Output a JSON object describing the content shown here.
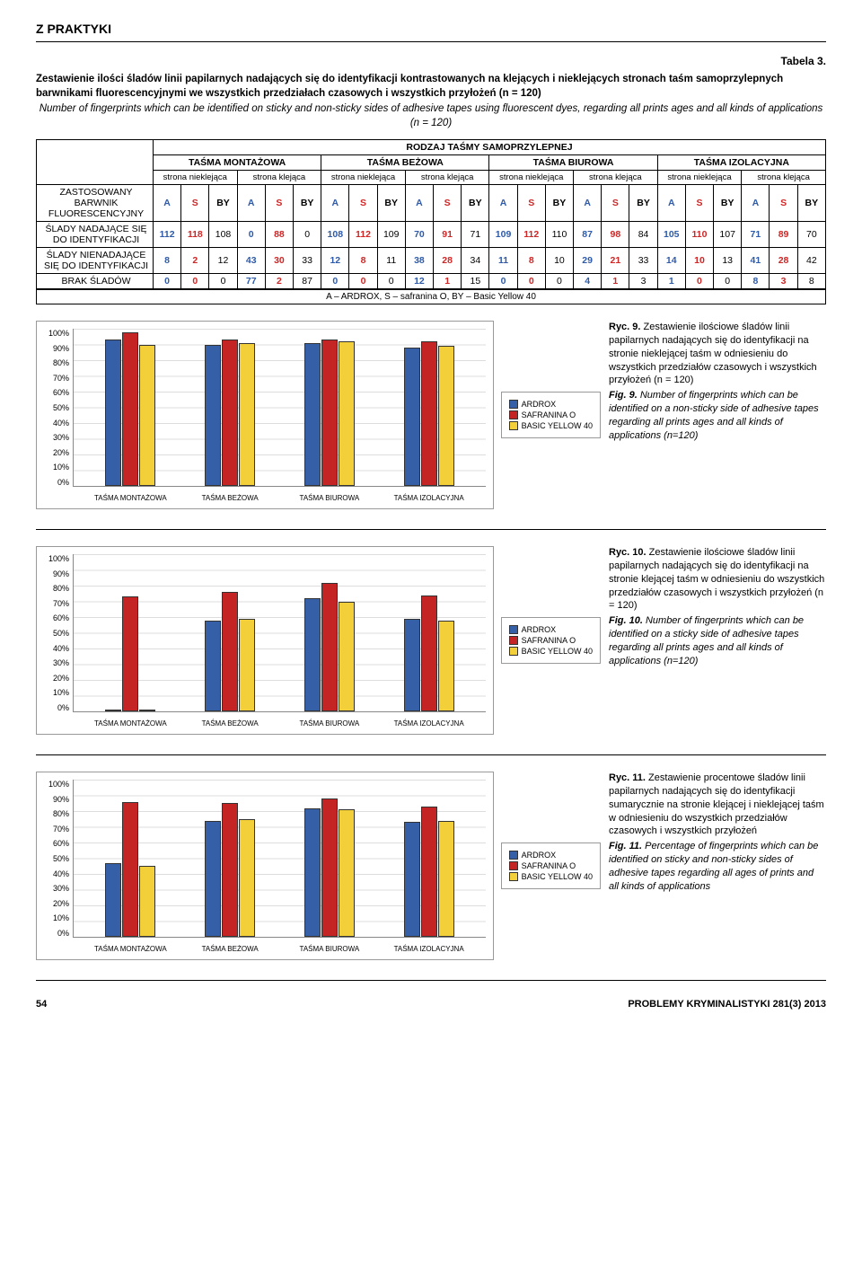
{
  "header": {
    "section": "Z PRAKTYKI"
  },
  "table": {
    "label": "Tabela 3.",
    "caption_pl": "Zestawienie ilości śladów linii papilarnych nadających się do identyfikacji kontrastowanych na klejących i nieklejących stronach taśm samoprzylepnych barwnikami fluorescencyjnymi we wszystkich przedziałach czasowych i wszystkich przyłożeń (n = 120)",
    "caption_en": "Number of fingerprints which can be identified on sticky and non-sticky sides of adhesive tapes using fluorescent dyes, regarding all prints ages and all kinds of applications (n = 120)",
    "super_header": "RODZAJ TAŚMY SAMOPRZYLEPNEJ",
    "tape_types": [
      "TAŚMA MONTAŻOWA",
      "TAŚMA BEŻOWA",
      "TAŚMA BIUROWA",
      "TAŚMA IZOLACYJNA"
    ],
    "side_labels": [
      "strona nieklejąca",
      "strona klejąca",
      "strona nieklejąca",
      "strona klejąca",
      "strona nieklejąca",
      "strona klejąca",
      "strona nieklejąca",
      "strona klejąca"
    ],
    "dye_cols": [
      "A",
      "S",
      "BY",
      "A",
      "S",
      "BY",
      "A",
      "S",
      "BY",
      "A",
      "S",
      "BY",
      "A",
      "S",
      "BY",
      "A",
      "S",
      "BY",
      "A",
      "S",
      "BY",
      "A",
      "S",
      "BY"
    ],
    "row_labels": [
      "ZASTOSOWANY BARWNIK FLUORESCENCYJNY",
      "ŚLADY NADAJĄCE SIĘ DO IDENTYFIKACJI",
      "ŚLADY NIENADAJĄCE SIĘ DO IDENTYFIKACJI",
      "BRAK ŚLADÓW"
    ],
    "rows": [
      [
        112,
        118,
        108,
        0,
        88,
        0,
        108,
        112,
        109,
        70,
        91,
        71,
        109,
        112,
        110,
        87,
        98,
        84,
        105,
        110,
        107,
        71,
        89,
        70
      ],
      [
        8,
        2,
        12,
        43,
        30,
        33,
        12,
        8,
        11,
        38,
        28,
        34,
        11,
        8,
        10,
        29,
        21,
        33,
        14,
        10,
        13,
        41,
        28,
        42
      ],
      [
        0,
        0,
        0,
        77,
        2,
        87,
        0,
        0,
        0,
        12,
        1,
        15,
        0,
        0,
        0,
        4,
        1,
        3,
        1,
        0,
        0,
        8,
        3,
        8
      ]
    ],
    "legend": "A – ARDROX, S – safranina O, BY – Basic Yellow 40"
  },
  "charts_common": {
    "categories": [
      "TAŚMA MONTAŻOWA",
      "TAŚMA BEŻOWA",
      "TAŚMA BIUROWA",
      "TAŚMA IZOLACYJNA"
    ],
    "series_names": [
      "ARDROX",
      "SAFRANINA O",
      "BASIC YELLOW 40"
    ],
    "series_colors": [
      "#355fa6",
      "#c52424",
      "#f3d03a"
    ],
    "ylim": [
      0,
      100
    ],
    "yticks": [
      "0%",
      "10%",
      "20%",
      "30%",
      "40%",
      "50%",
      "60%",
      "70%",
      "80%",
      "90%",
      "100%"
    ],
    "background_color": "#ffffff",
    "grid_color": "#dddddd"
  },
  "chart9": {
    "values": {
      "ARDROX": [
        93,
        90,
        91,
        88
      ],
      "SAFRANINA O": [
        98,
        93,
        93,
        92
      ],
      "BASIC YELLOW 40": [
        90,
        91,
        92,
        89
      ]
    },
    "caption_label": "Ryc. 9.",
    "caption_pl": "Zestawienie ilościowe śladów linii papilarnych nadających się do identyfikacji na stronie nieklejącej taśm w odniesieniu do wszystkich przedziałów czasowych i wszystkich przyłożeń (n = 120)",
    "fig_label": "Fig. 9.",
    "caption_en": "Number of fingerprints which can be identified on a non-sticky side of adhesive tapes regarding all prints ages and all kinds of applications (n=120)"
  },
  "chart10": {
    "values": {
      "ARDROX": [
        0,
        58,
        72,
        59
      ],
      "SAFRANINA O": [
        73,
        76,
        82,
        74
      ],
      "BASIC YELLOW 40": [
        0,
        59,
        70,
        58
      ]
    },
    "caption_label": "Ryc. 10.",
    "caption_pl": "Zestawienie ilościowe śladów linii papilarnych nadających się do identyfikacji na stronie klejącej taśm w odniesieniu do wszystkich przedziałów czasowych i wszystkich przyłożeń (n = 120)",
    "fig_label": "Fig. 10.",
    "caption_en": "Number of fingerprints which can be identified on a sticky side of adhesive tapes regarding all prints ages and all kinds of applications (n=120)"
  },
  "chart11": {
    "values": {
      "ARDROX": [
        47,
        74,
        82,
        73
      ],
      "SAFRANINA O": [
        86,
        85,
        88,
        83
      ],
      "BASIC YELLOW 40": [
        45,
        75,
        81,
        74
      ]
    },
    "caption_label": "Ryc. 11.",
    "caption_pl": "Zestawienie procentowe śladów linii papilarnych nadających się do identyfikacji sumarycznie na stronie klejącej i nieklejącej taśm w odniesieniu do wszystkich przedziałów czasowych i wszystkich przyłożeń",
    "fig_label": "Fig. 11.",
    "caption_en": "Percentage of fingerprints which can be identified on sticky and non-sticky sides of adhesive tapes regarding all ages of prints and all kinds of applications"
  },
  "footer": {
    "page": "54",
    "journal": "PROBLEMY KRYMINALISTYKI 281(3) 2013"
  }
}
